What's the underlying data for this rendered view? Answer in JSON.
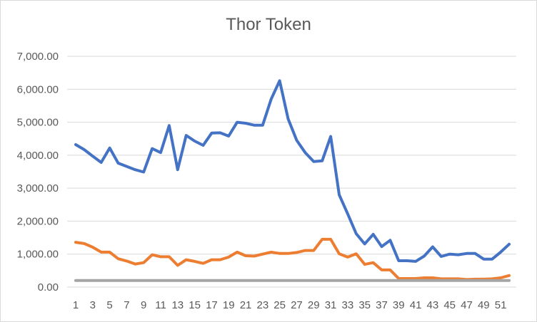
{
  "chart_data": {
    "type": "line",
    "title": "Thor Token",
    "xlabel": "",
    "ylabel": "",
    "ylim": [
      0,
      7000
    ],
    "y_tick_labels": [
      "0.00",
      "1,000.00",
      "2,000.00",
      "3,000.00",
      "4,000.00",
      "5,000.00",
      "6,000.00",
      "7,000.00"
    ],
    "y_ticks": [
      0,
      1000,
      2000,
      3000,
      4000,
      5000,
      6000,
      7000
    ],
    "x_tick_labels": [
      "1",
      "3",
      "5",
      "7",
      "9",
      "11",
      "13",
      "15",
      "17",
      "19",
      "21",
      "23",
      "25",
      "27",
      "29",
      "31",
      "33",
      "35",
      "37",
      "39",
      "41",
      "43",
      "45",
      "47",
      "49",
      "51"
    ],
    "x_tick_positions": [
      1,
      3,
      5,
      7,
      9,
      11,
      13,
      15,
      17,
      19,
      21,
      23,
      25,
      27,
      29,
      31,
      33,
      35,
      37,
      39,
      41,
      43,
      45,
      47,
      49,
      51
    ],
    "x": [
      1,
      2,
      3,
      4,
      5,
      6,
      7,
      8,
      9,
      10,
      11,
      12,
      13,
      14,
      15,
      16,
      17,
      18,
      19,
      20,
      21,
      22,
      23,
      24,
      25,
      26,
      27,
      28,
      29,
      30,
      31,
      32,
      33,
      34,
      35,
      36,
      37,
      38,
      39,
      40,
      41,
      42,
      43,
      44,
      45,
      46,
      47,
      48,
      49,
      50,
      51,
      52
    ],
    "grid": true,
    "legend": "none",
    "series": [
      {
        "color": "#4472C4",
        "values": [
          4320,
          4170,
          3970,
          3780,
          4220,
          3760,
          3660,
          3560,
          3490,
          4200,
          4080,
          4900,
          3560,
          4600,
          4430,
          4300,
          4670,
          4680,
          4580,
          5000,
          4970,
          4910,
          4910,
          5700,
          6260,
          5100,
          4450,
          4080,
          3810,
          3830,
          4570,
          2800,
          2220,
          1620,
          1310,
          1600,
          1230,
          1420,
          800,
          800,
          780,
          940,
          1220,
          930,
          1000,
          980,
          1020,
          1020,
          850,
          850,
          1060,
          1300
        ]
      },
      {
        "color": "#ED7D31",
        "values": [
          1360,
          1320,
          1210,
          1060,
          1060,
          860,
          790,
          700,
          740,
          980,
          920,
          920,
          660,
          830,
          780,
          720,
          830,
          830,
          910,
          1060,
          950,
          940,
          1000,
          1060,
          1020,
          1020,
          1050,
          1110,
          1110,
          1450,
          1450,
          1010,
          910,
          1010,
          690,
          740,
          520,
          520,
          260,
          260,
          260,
          280,
          280,
          250,
          250,
          250,
          230,
          240,
          240,
          250,
          280,
          350
        ]
      },
      {
        "color": "#A5A5A5",
        "values": [
          200,
          200,
          200,
          200,
          200,
          200,
          200,
          200,
          200,
          200,
          200,
          200,
          200,
          200,
          200,
          200,
          200,
          200,
          200,
          200,
          200,
          200,
          200,
          200,
          200,
          200,
          200,
          200,
          200,
          200,
          200,
          200,
          200,
          200,
          200,
          200,
          200,
          200,
          200,
          200,
          200,
          200,
          200,
          200,
          200,
          200,
          200,
          200,
          200,
          200,
          200,
          200
        ]
      }
    ]
  }
}
